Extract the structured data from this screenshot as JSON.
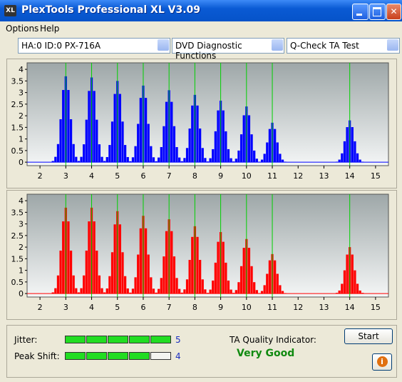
{
  "window": {
    "title": "PlexTools Professional XL V3.09",
    "icon": "XL"
  },
  "menu": [
    "Options",
    "Help"
  ],
  "dropdowns": [
    "HA:0 ID:0  PX-716A",
    "DVD Diagnostic Functions",
    "Q-Check TA Test"
  ],
  "chart_data": [
    {
      "type": "bar",
      "color": "#0000ff",
      "xlim": [
        1.5,
        15.5
      ],
      "ylim": [
        -0.15,
        4.28
      ],
      "xticks": [
        2,
        3,
        4,
        5,
        6,
        7,
        8,
        9,
        10,
        11,
        12,
        13,
        14,
        15
      ],
      "yticks": [
        0,
        0.5,
        1,
        1.5,
        2,
        2.5,
        3,
        3.5,
        4
      ],
      "marker_lines": {
        "color": "#00d000",
        "x": [
          3,
          4,
          5,
          6,
          7,
          8,
          9,
          10,
          11,
          14
        ]
      },
      "x": [
        2.5,
        2.6,
        2.7,
        2.8,
        2.9,
        3.0,
        3.1,
        3.2,
        3.3,
        3.4,
        3.5,
        3.6,
        3.7,
        3.8,
        3.9,
        4.0,
        4.1,
        4.2,
        4.3,
        4.4,
        4.5,
        4.6,
        4.7,
        4.8,
        4.9,
        5.0,
        5.1,
        5.2,
        5.3,
        5.4,
        5.5,
        5.6,
        5.7,
        5.8,
        5.9,
        6.0,
        6.1,
        6.2,
        6.3,
        6.4,
        6.5,
        6.6,
        6.7,
        6.8,
        6.9,
        7.0,
        7.1,
        7.2,
        7.3,
        7.4,
        7.5,
        7.6,
        7.7,
        7.8,
        7.9,
        8.0,
        8.1,
        8.2,
        8.3,
        8.4,
        8.5,
        8.6,
        8.7,
        8.8,
        8.9,
        9.0,
        9.1,
        9.2,
        9.3,
        9.4,
        9.5,
        9.6,
        9.7,
        9.8,
        9.9,
        10.0,
        10.1,
        10.2,
        10.3,
        10.4,
        10.5,
        10.6,
        10.7,
        10.8,
        10.9,
        11.0,
        11.1,
        11.2,
        11.3,
        11.4,
        11.5,
        13.5,
        13.6,
        13.7,
        13.8,
        13.9,
        14.0,
        14.1,
        14.2,
        14.3,
        14.4,
        14.5
      ],
      "values": [
        0.05,
        0.23,
        0.78,
        1.85,
        3.11,
        3.7,
        3.11,
        1.85,
        0.78,
        0.23,
        0.05,
        0.23,
        0.77,
        1.83,
        3.07,
        3.65,
        3.07,
        1.83,
        0.77,
        0.23,
        0.05,
        0.22,
        0.74,
        1.75,
        2.94,
        3.5,
        2.94,
        1.75,
        0.74,
        0.22,
        0.04,
        0.21,
        0.69,
        1.65,
        2.77,
        3.3,
        2.77,
        1.65,
        0.69,
        0.21,
        0.04,
        0.2,
        0.65,
        1.55,
        2.6,
        3.1,
        2.6,
        1.55,
        0.65,
        0.2,
        0.04,
        0.18,
        0.61,
        1.45,
        2.44,
        2.9,
        2.44,
        1.45,
        0.61,
        0.18,
        0.03,
        0.17,
        0.56,
        1.33,
        2.23,
        2.65,
        2.23,
        1.33,
        0.56,
        0.17,
        0.03,
        0.15,
        0.5,
        1.2,
        2.02,
        2.4,
        2.02,
        1.2,
        0.5,
        0.15,
        0.02,
        0.11,
        0.36,
        0.85,
        1.43,
        1.7,
        1.43,
        0.85,
        0.36,
        0.11,
        0.02,
        0.02,
        0.11,
        0.38,
        0.9,
        1.51,
        1.8,
        1.51,
        0.9,
        0.38,
        0.11,
        0.02
      ]
    },
    {
      "type": "bar",
      "color": "#ff0000",
      "xlim": [
        1.5,
        15.5
      ],
      "ylim": [
        -0.15,
        4.28
      ],
      "xticks": [
        2,
        3,
        4,
        5,
        6,
        7,
        8,
        9,
        10,
        11,
        12,
        13,
        14,
        15
      ],
      "yticks": [
        0,
        0.5,
        1,
        1.5,
        2,
        2.5,
        3,
        3.5,
        4
      ],
      "marker_lines": {
        "color": "#00d000",
        "x": [
          3,
          4,
          5,
          6,
          7,
          8,
          9,
          10,
          11,
          14
        ]
      },
      "x": [
        2.5,
        2.6,
        2.7,
        2.8,
        2.9,
        3.0,
        3.1,
        3.2,
        3.3,
        3.4,
        3.5,
        3.6,
        3.7,
        3.8,
        3.9,
        4.0,
        4.1,
        4.2,
        4.3,
        4.4,
        4.5,
        4.6,
        4.7,
        4.8,
        4.9,
        5.0,
        5.1,
        5.2,
        5.3,
        5.4,
        5.5,
        5.6,
        5.7,
        5.8,
        5.9,
        6.0,
        6.1,
        6.2,
        6.3,
        6.4,
        6.5,
        6.6,
        6.7,
        6.8,
        6.9,
        7.0,
        7.1,
        7.2,
        7.3,
        7.4,
        7.5,
        7.6,
        7.7,
        7.8,
        7.9,
        8.0,
        8.1,
        8.2,
        8.3,
        8.4,
        8.5,
        8.6,
        8.7,
        8.8,
        8.9,
        9.0,
        9.1,
        9.2,
        9.3,
        9.4,
        9.5,
        9.6,
        9.7,
        9.8,
        9.9,
        10.0,
        10.1,
        10.2,
        10.3,
        10.4,
        10.5,
        10.6,
        10.7,
        10.8,
        10.9,
        11.0,
        11.1,
        11.2,
        11.3,
        11.4,
        11.5,
        13.5,
        13.6,
        13.7,
        13.8,
        13.9,
        14.0,
        14.1,
        14.2,
        14.3,
        14.4,
        14.5
      ],
      "values": [
        0.05,
        0.23,
        0.78,
        1.85,
        3.11,
        3.7,
        3.11,
        1.85,
        0.78,
        0.23,
        0.05,
        0.23,
        0.78,
        1.85,
        3.11,
        3.7,
        3.11,
        1.85,
        0.78,
        0.23,
        0.05,
        0.22,
        0.75,
        1.78,
        2.98,
        3.55,
        2.98,
        1.78,
        0.75,
        0.22,
        0.04,
        0.21,
        0.7,
        1.68,
        2.81,
        3.35,
        2.81,
        1.68,
        0.7,
        0.21,
        0.04,
        0.2,
        0.67,
        1.6,
        2.69,
        3.2,
        2.69,
        1.6,
        0.67,
        0.2,
        0.04,
        0.18,
        0.61,
        1.45,
        2.44,
        2.9,
        2.44,
        1.45,
        0.61,
        0.18,
        0.03,
        0.17,
        0.56,
        1.33,
        2.23,
        2.65,
        2.23,
        1.33,
        0.56,
        0.17,
        0.03,
        0.15,
        0.49,
        1.18,
        1.97,
        2.35,
        1.97,
        1.18,
        0.49,
        0.15,
        0.02,
        0.11,
        0.36,
        0.85,
        1.43,
        1.7,
        1.43,
        0.85,
        0.36,
        0.11,
        0.02,
        0.03,
        0.13,
        0.42,
        1.0,
        1.68,
        2.0,
        1.68,
        1.0,
        0.42,
        0.13,
        0.03
      ]
    }
  ],
  "quality": {
    "jitter_label": "Jitter:",
    "jitter": 5,
    "peak_shift_label": "Peak Shift:",
    "peak_shift": 4,
    "ta_label": "TA Quality Indicator:",
    "ta_value": "Very Good",
    "start": "Start",
    "info": "i"
  }
}
